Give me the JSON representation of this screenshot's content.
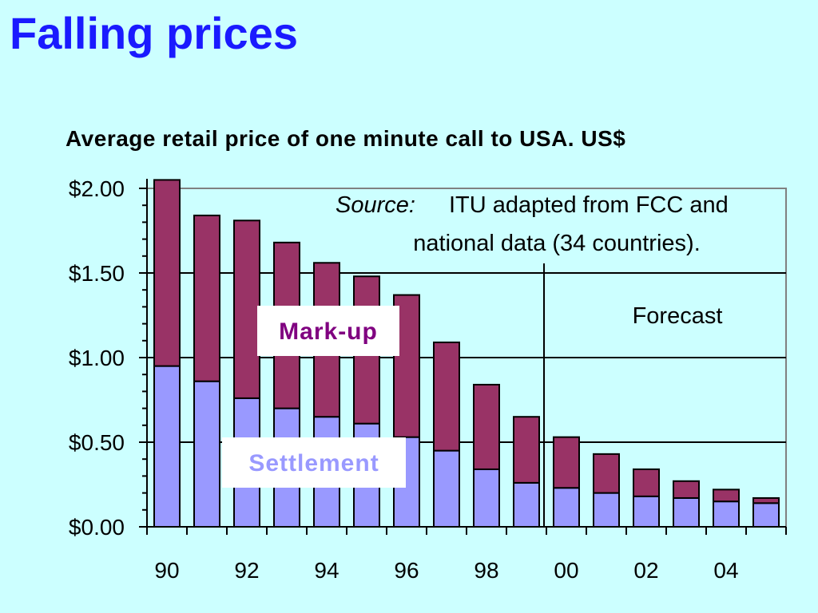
{
  "slide": {
    "title": "Falling prices"
  },
  "chart_data": {
    "type": "bar",
    "stacked": true,
    "title": "Average retail price of one minute call to USA. US$",
    "xlabel": "",
    "ylabel": "",
    "categories": [
      "90",
      "91",
      "92",
      "93",
      "94",
      "95",
      "96",
      "97",
      "98",
      "99",
      "00",
      "01",
      "02",
      "03",
      "04",
      "05"
    ],
    "x_tick_labels": [
      "90",
      "92",
      "94",
      "96",
      "98",
      "00",
      "02",
      "04"
    ],
    "y_tick_labels": [
      "$0.00",
      "$0.50",
      "$1.00",
      "$1.50",
      "$2.00"
    ],
    "y_ticks": [
      0,
      0.5,
      1.0,
      1.5,
      2.0
    ],
    "ylim": [
      0,
      2.0
    ],
    "grid": true,
    "series": [
      {
        "name": "Settlement",
        "color": "#9999ff",
        "values": [
          0.95,
          0.86,
          0.76,
          0.7,
          0.65,
          0.61,
          0.53,
          0.45,
          0.34,
          0.26,
          0.23,
          0.2,
          0.18,
          0.17,
          0.15,
          0.14
        ]
      },
      {
        "name": "Mark-up",
        "color": "#993366",
        "values": [
          1.1,
          0.98,
          1.05,
          0.98,
          0.91,
          0.87,
          0.84,
          0.64,
          0.5,
          0.39,
          0.3,
          0.23,
          0.16,
          0.1,
          0.07,
          0.03
        ]
      }
    ],
    "annotations": {
      "source_label": "Source:",
      "source_text": "ITU adapted from FCC and",
      "source_text_2": "national data (34 countries).",
      "forecast_label": "Forecast",
      "forecast_start_category": "00"
    },
    "label_colors": {
      "Mark-up": "#800080",
      "Settlement": "#9999ff"
    }
  }
}
